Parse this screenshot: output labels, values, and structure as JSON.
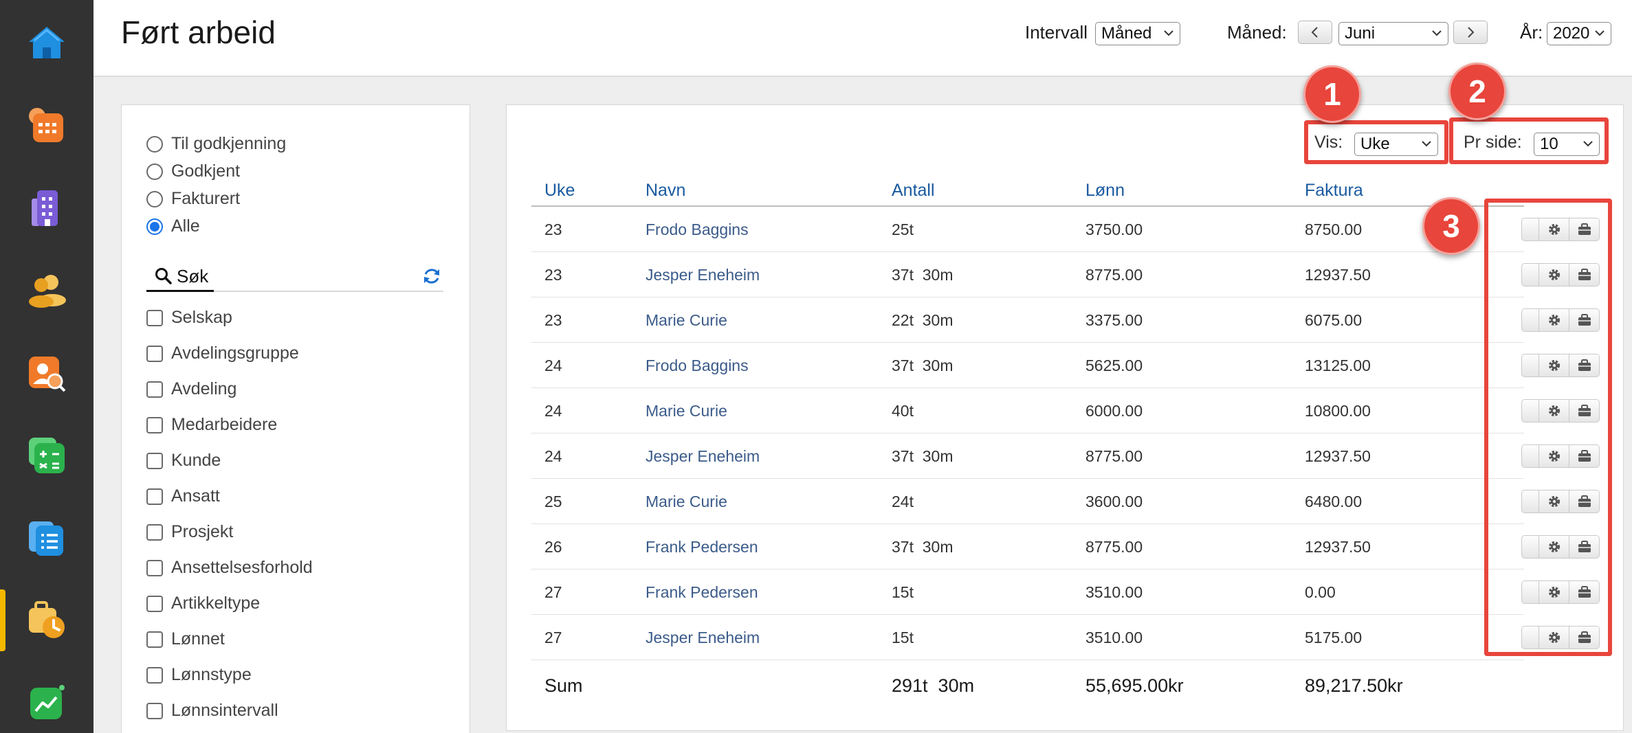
{
  "sidebar": {
    "items": [
      {
        "icon": "home-icon",
        "color": "#1f8fe0"
      },
      {
        "icon": "calendar-icon",
        "color": "#f07a2a"
      },
      {
        "icon": "building-icon",
        "color": "#7a5cd6"
      },
      {
        "icon": "people-icon",
        "color": "#f0b12a"
      },
      {
        "icon": "person-search-icon",
        "color": "#f07a2a"
      },
      {
        "icon": "calculator-icon",
        "color": "#2bb24c"
      },
      {
        "icon": "document-list-icon",
        "color": "#1f8fe0"
      },
      {
        "icon": "briefcase-clock-icon",
        "color": "#f0a020",
        "active": true
      },
      {
        "icon": "chart-trend-icon",
        "color": "#2bb24c"
      }
    ]
  },
  "header": {
    "title": "Ført arbeid",
    "interval_label": "Intervall",
    "interval_value": "Måned",
    "month_label": "Måned:",
    "month_value": "Juni",
    "year_label": "År:",
    "year_value": "2020"
  },
  "filters": {
    "status_options": [
      {
        "label": "Til godkjenning",
        "checked": false
      },
      {
        "label": "Godkjent",
        "checked": false
      },
      {
        "label": "Fakturert",
        "checked": false
      },
      {
        "label": "Alle",
        "checked": true
      }
    ],
    "search_label": "Søk",
    "groups": [
      "Selskap",
      "Avdelingsgruppe",
      "Avdeling",
      "Medarbeidere",
      "Kunde",
      "Ansatt",
      "Prosjekt",
      "Ansettelsesforhold",
      "Artikkeltype",
      "Lønnet",
      "Lønnstype",
      "Lønnsintervall"
    ]
  },
  "table": {
    "vis_label": "Vis:",
    "vis_value": "Uke",
    "per_page_label": "Pr side:",
    "per_page_value": "10",
    "columns": {
      "week": "Uke",
      "name": "Navn",
      "amount": "Antall",
      "salary": "Lønn",
      "invoice": "Faktura"
    },
    "rows": [
      {
        "week": "23",
        "name": "Frodo Baggins",
        "amount": "25t",
        "salary": "3750.00",
        "invoice": "8750.00"
      },
      {
        "week": "23",
        "name": "Jesper Eneheim",
        "amount": "37t  30m",
        "salary": "8775.00",
        "invoice": "12937.50"
      },
      {
        "week": "23",
        "name": "Marie Curie",
        "amount": "22t  30m",
        "salary": "3375.00",
        "invoice": "6075.00"
      },
      {
        "week": "24",
        "name": "Frodo Baggins",
        "amount": "37t  30m",
        "salary": "5625.00",
        "invoice": "13125.00"
      },
      {
        "week": "24",
        "name": "Marie Curie",
        "amount": "40t",
        "salary": "6000.00",
        "invoice": "10800.00"
      },
      {
        "week": "24",
        "name": "Jesper Eneheim",
        "amount": "37t  30m",
        "salary": "8775.00",
        "invoice": "12937.50"
      },
      {
        "week": "25",
        "name": "Marie Curie",
        "amount": "24t",
        "salary": "3600.00",
        "invoice": "6480.00"
      },
      {
        "week": "26",
        "name": "Frank Pedersen",
        "amount": "37t  30m",
        "salary": "8775.00",
        "invoice": "12937.50"
      },
      {
        "week": "27",
        "name": "Frank Pedersen",
        "amount": "15t",
        "salary": "3510.00",
        "invoice": "0.00"
      },
      {
        "week": "27",
        "name": "Jesper Eneheim",
        "amount": "15t",
        "salary": "3510.00",
        "invoice": "5175.00"
      }
    ],
    "sum": {
      "label": "Sum",
      "amount": "291t  30m",
      "salary": "55,695.00kr",
      "invoice": "89,217.50kr"
    }
  },
  "annotations": {
    "badge_1": "1",
    "badge_2": "2",
    "badge_3": "3",
    "color": "#e8453c"
  }
}
